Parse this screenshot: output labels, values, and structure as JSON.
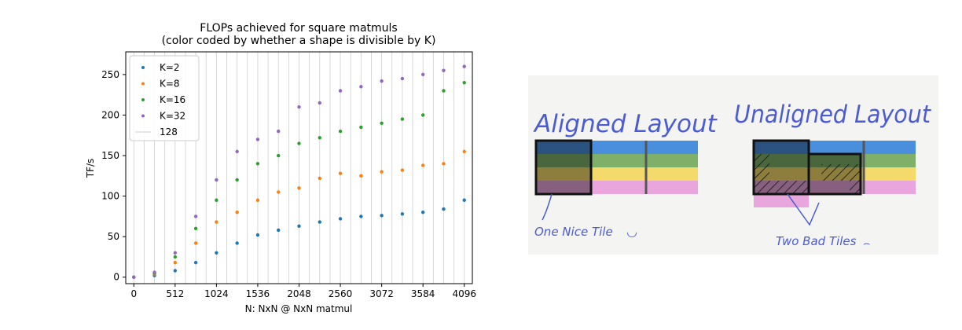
{
  "chart_data": {
    "type": "scatter",
    "title": "FLOPs achieved for square matmuls",
    "subtitle": "(color coded by whether a shape is divisible by K)",
    "xlabel": "N: NxN @ NxN matmul",
    "ylabel": "TF/s",
    "xlim": [
      -100,
      4196
    ],
    "ylim": [
      -8,
      278
    ],
    "xticks": [
      0,
      512,
      1024,
      1536,
      2048,
      2560,
      3072,
      3584,
      4096
    ],
    "yticks": [
      0,
      50,
      100,
      150,
      200,
      250
    ],
    "grid": "vertical lines every 128",
    "legend_position": "top-left",
    "series": [
      {
        "name": "K=2",
        "color": "#1f77b4",
        "x": [
          0,
          256,
          512,
          768,
          1024,
          1280,
          1536,
          1792,
          2048,
          2304,
          2560,
          2816,
          3072,
          3328,
          3584,
          3840,
          4096
        ],
        "y": [
          0,
          2,
          8,
          18,
          30,
          42,
          52,
          58,
          63,
          68,
          72,
          75,
          76,
          78,
          80,
          84,
          95
        ]
      },
      {
        "name": "K=8",
        "color": "#ff7f0e",
        "x": [
          0,
          256,
          512,
          768,
          1024,
          1280,
          1536,
          1792,
          2048,
          2304,
          2560,
          2816,
          3072,
          3328,
          3584,
          3840,
          4096
        ],
        "y": [
          0,
          4,
          18,
          42,
          68,
          80,
          95,
          105,
          110,
          122,
          128,
          125,
          130,
          132,
          138,
          140,
          155
        ]
      },
      {
        "name": "K=16",
        "color": "#2ca02c",
        "x": [
          0,
          256,
          512,
          768,
          1024,
          1280,
          1536,
          1792,
          2048,
          2304,
          2560,
          2816,
          3072,
          3328,
          3584,
          3840,
          4096
        ],
        "y": [
          0,
          5,
          25,
          60,
          95,
          120,
          140,
          150,
          165,
          172,
          180,
          185,
          190,
          195,
          200,
          230,
          240
        ]
      },
      {
        "name": "K=32",
        "color": "#9467bd",
        "x": [
          0,
          256,
          512,
          768,
          1024,
          1280,
          1536,
          1792,
          2048,
          2304,
          2560,
          2816,
          3072,
          3328,
          3584,
          3840,
          4096
        ],
        "y": [
          0,
          6,
          30,
          75,
          120,
          155,
          170,
          180,
          210,
          215,
          230,
          235,
          242,
          245,
          250,
          255,
          260
        ]
      },
      {
        "name": "128",
        "color": "#cfcfcf",
        "kind": "line"
      }
    ]
  },
  "illustration": {
    "aligned_title": "Aligned Layout",
    "unaligned_title": "Unaligned Layout",
    "aligned_caption": "One Nice Tile",
    "unaligned_caption": "Two Bad Tiles",
    "happy_face": "◡",
    "sad_face": "⌢",
    "stripe_colors": [
      "#4a8fde",
      "#7fb069",
      "#f4d96b",
      "#e9a6dc"
    ],
    "ink_color": "#4a5bd4"
  }
}
